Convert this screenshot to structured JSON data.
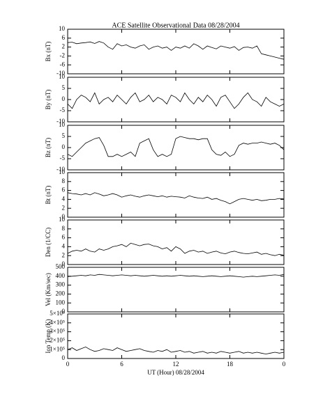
{
  "title": "ACE Satellite Observational Data   08/28/2004",
  "chart_data": [
    {
      "type": "line",
      "ylabel": "Bx (nT)",
      "color": "#000000",
      "ylim": [
        -10,
        10
      ],
      "yticks": [
        -10,
        -6,
        -2,
        2,
        6,
        10
      ],
      "x": [
        0,
        0.5,
        1,
        1.5,
        2,
        2.5,
        3,
        3.5,
        4,
        4.5,
        5,
        5.5,
        6,
        6.5,
        7,
        7.5,
        8,
        8.5,
        9,
        9.5,
        10,
        10.5,
        11,
        11.5,
        12,
        12.5,
        13,
        13.5,
        14,
        14.5,
        15,
        15.5,
        16,
        16.5,
        17,
        17.5,
        18,
        18.5,
        19,
        19.5,
        20,
        20.5,
        21,
        21.5,
        22,
        22.5,
        23,
        23.5,
        24
      ],
      "values": [
        4,
        4.2,
        3.5,
        3.8,
        4,
        4.3,
        3.6,
        4.5,
        3.8,
        2,
        1,
        3.5,
        2.5,
        3,
        2,
        1.5,
        2.5,
        3,
        1,
        2,
        2.5,
        1.5,
        2,
        0.5,
        2,
        1.5,
        2.5,
        1.5,
        3.5,
        2.5,
        1,
        2.5,
        1.8,
        1.2,
        2.5,
        2,
        1.5,
        2.2,
        0.5,
        1.8,
        2,
        1.5,
        2.5,
        -1,
        -1.5,
        -2,
        -2.5,
        -3,
        -3.5
      ]
    },
    {
      "type": "line",
      "ylabel": "By (nT)",
      "color": "#000000",
      "ylim": [
        -10,
        10
      ],
      "yticks": [
        -10,
        -5,
        0,
        5,
        10
      ],
      "x": [
        0,
        0.5,
        1,
        1.5,
        2,
        2.5,
        3,
        3.5,
        4,
        4.5,
        5,
        5.5,
        6,
        6.5,
        7,
        7.5,
        8,
        8.5,
        9,
        9.5,
        10,
        10.5,
        11,
        11.5,
        12,
        12.5,
        13,
        13.5,
        14,
        14.5,
        15,
        15.5,
        16,
        16.5,
        17,
        17.5,
        18,
        18.5,
        19,
        19.5,
        20,
        20.5,
        21,
        21.5,
        22,
        22.5,
        23,
        23.5,
        24
      ],
      "values": [
        -2,
        -4,
        0,
        2,
        1,
        -1,
        3,
        -2,
        0,
        1,
        -1,
        2,
        0,
        -2,
        1,
        3,
        -1,
        0,
        2,
        -1,
        1,
        0,
        -2,
        2,
        1,
        -1,
        3,
        0,
        -2,
        1,
        -1,
        2,
        0,
        -3,
        1,
        2,
        -1,
        -4,
        -2,
        1,
        3,
        0,
        -1,
        -3,
        1,
        -1,
        -2,
        -3,
        -2
      ]
    },
    {
      "type": "line",
      "ylabel": "Bz (nT)",
      "color": "#000000",
      "ylim": [
        -10,
        10
      ],
      "yticks": [
        -10,
        -5,
        0,
        5,
        10
      ],
      "x": [
        0,
        0.5,
        1,
        1.5,
        2,
        2.5,
        3,
        3.5,
        4,
        4.5,
        5,
        5.5,
        6,
        6.5,
        7,
        7.5,
        8,
        8.5,
        9,
        9.5,
        10,
        10.5,
        11,
        11.5,
        12,
        12.5,
        13,
        13.5,
        14,
        14.5,
        15,
        15.5,
        16,
        16.5,
        17,
        17.5,
        18,
        18.5,
        19,
        19.5,
        20,
        20.5,
        21,
        21.5,
        22,
        22.5,
        23,
        23.5,
        24
      ],
      "values": [
        -3,
        -4,
        -2,
        0,
        2,
        3,
        4,
        4.5,
        1,
        -4,
        -4,
        -3,
        -4,
        -3,
        -2,
        -4,
        2,
        3,
        4,
        -1,
        -4,
        -3,
        -4,
        -3,
        4,
        5,
        4.5,
        4,
        4,
        3.5,
        4,
        4,
        -1,
        -3,
        -3.5,
        -2,
        -4,
        -3,
        1,
        2,
        1.5,
        2,
        2,
        2.5,
        2,
        1.5,
        2,
        1,
        -1
      ]
    },
    {
      "type": "line",
      "ylabel": "Bt (nT)",
      "color": "#000000",
      "ylim": [
        0,
        10
      ],
      "yticks": [
        0,
        2,
        4,
        6,
        8,
        10
      ],
      "x": [
        0,
        0.5,
        1,
        1.5,
        2,
        2.5,
        3,
        3.5,
        4,
        4.5,
        5,
        5.5,
        6,
        6.5,
        7,
        7.5,
        8,
        8.5,
        9,
        9.5,
        10,
        10.5,
        11,
        11.5,
        12,
        12.5,
        13,
        13.5,
        14,
        14.5,
        15,
        15.5,
        16,
        16.5,
        17,
        17.5,
        18,
        18.5,
        19,
        19.5,
        20,
        20.5,
        21,
        21.5,
        22,
        22.5,
        23,
        23.5,
        24
      ],
      "values": [
        5.5,
        5.3,
        5.2,
        5,
        5.3,
        5,
        5.5,
        5.2,
        4.8,
        5,
        5.3,
        5,
        4.5,
        4.8,
        5,
        4.7,
        4.5,
        4.8,
        5,
        4.8,
        4.6,
        4.8,
        4.5,
        4.7,
        4.6,
        4.5,
        4.3,
        4.8,
        4.5,
        4.3,
        4.2,
        4.5,
        4,
        4.2,
        3.8,
        3.5,
        3,
        3.5,
        4,
        4.2,
        4,
        3.8,
        4,
        3.7,
        3.8,
        4,
        4,
        4.2,
        4.1
      ]
    },
    {
      "type": "line",
      "ylabel": "Den (1/CC)",
      "color": "#000000",
      "ylim": [
        0,
        10
      ],
      "yticks": [
        0,
        2,
        4,
        6,
        8,
        10
      ],
      "x": [
        0,
        0.5,
        1,
        1.5,
        2,
        2.5,
        3,
        3.5,
        4,
        4.5,
        5,
        5.5,
        6,
        6.5,
        7,
        7.5,
        8,
        8.5,
        9,
        9.5,
        10,
        10.5,
        11,
        11.5,
        12,
        12.5,
        13,
        13.5,
        14,
        14.5,
        15,
        15.5,
        16,
        16.5,
        17,
        17.5,
        18,
        18.5,
        19,
        19.5,
        20,
        20.5,
        21,
        21.5,
        22,
        22.5,
        23,
        23.5,
        24
      ],
      "values": [
        2.5,
        3,
        3.2,
        3,
        3.5,
        3,
        2.8,
        3.5,
        3.2,
        3.5,
        4,
        4.2,
        4.5,
        4,
        4.8,
        4.5,
        4.2,
        4.5,
        4.6,
        4.2,
        4,
        3.5,
        3.8,
        3,
        4,
        3.5,
        2.5,
        3,
        3.2,
        2.8,
        3,
        2.5,
        2.8,
        3,
        2.6,
        2.4,
        2.8,
        3,
        2.7,
        2.5,
        2.4,
        2.6,
        2.8,
        2.3,
        2.5,
        2.2,
        2,
        2.3,
        2.1
      ]
    },
    {
      "type": "line",
      "ylabel": "Vel (Km/sec)",
      "color": "#000000",
      "ylim": [
        0,
        500
      ],
      "yticks": [
        0,
        100,
        200,
        300,
        400,
        500
      ],
      "x": [
        0,
        0.5,
        1,
        1.5,
        2,
        2.5,
        3,
        3.5,
        4,
        4.5,
        5,
        5.5,
        6,
        6.5,
        7,
        7.5,
        8,
        8.5,
        9,
        9.5,
        10,
        10.5,
        11,
        11.5,
        12,
        12.5,
        13,
        13.5,
        14,
        14.5,
        15,
        15.5,
        16,
        16.5,
        17,
        17.5,
        18,
        18.5,
        19,
        19.5,
        20,
        20.5,
        21,
        21.5,
        22,
        22.5,
        23,
        23.5,
        24
      ],
      "values": [
        395,
        400,
        405,
        410,
        405,
        415,
        410,
        420,
        415,
        410,
        405,
        410,
        415,
        410,
        405,
        410,
        405,
        400,
        405,
        410,
        405,
        400,
        405,
        400,
        405,
        410,
        405,
        400,
        405,
        400,
        395,
        400,
        405,
        400,
        395,
        400,
        405,
        400,
        395,
        390,
        395,
        400,
        395,
        400,
        405,
        410,
        415,
        410,
        420
      ]
    },
    {
      "type": "line",
      "ylabel": "Ion Temp (K)",
      "color": "#000000",
      "ylim": [
        0,
        500000
      ],
      "yticks": [
        0,
        {
          "value": 100000,
          "label": "1×10⁵"
        },
        {
          "value": 200000,
          "label": "2×10⁵"
        },
        {
          "value": 300000,
          "label": "3×10⁵"
        },
        {
          "value": 400000,
          "label": "4×10⁵"
        },
        {
          "value": 500000,
          "label": "5×10⁵"
        }
      ],
      "x": [
        0,
        0.5,
        1,
        1.5,
        2,
        2.5,
        3,
        3.5,
        4,
        4.5,
        5,
        5.5,
        6,
        6.5,
        7,
        7.5,
        8,
        8.5,
        9,
        9.5,
        10,
        10.5,
        11,
        11.5,
        12,
        12.5,
        13,
        13.5,
        14,
        14.5,
        15,
        15.5,
        16,
        16.5,
        17,
        17.5,
        18,
        18.5,
        19,
        19.5,
        20,
        20.5,
        21,
        21.5,
        22,
        22.5,
        23,
        23.5,
        24
      ],
      "values": [
        100000,
        120000,
        90000,
        110000,
        130000,
        100000,
        80000,
        90000,
        110000,
        100000,
        90000,
        120000,
        100000,
        80000,
        90000,
        100000,
        110000,
        90000,
        80000,
        70000,
        90000,
        80000,
        100000,
        70000,
        80000,
        90000,
        70000,
        80000,
        60000,
        70000,
        80000,
        60000,
        70000,
        60000,
        80000,
        70000,
        60000,
        70000,
        80000,
        60000,
        70000,
        60000,
        70000,
        60000,
        50000,
        60000,
        70000,
        60000,
        70000
      ],
      "xlim": [
        0,
        24
      ],
      "xticks": [
        0,
        6,
        12,
        18,
        {
          "value": 24,
          "label": "0"
        }
      ],
      "xlabel": "UT (Hour)   08/28/2004"
    }
  ]
}
